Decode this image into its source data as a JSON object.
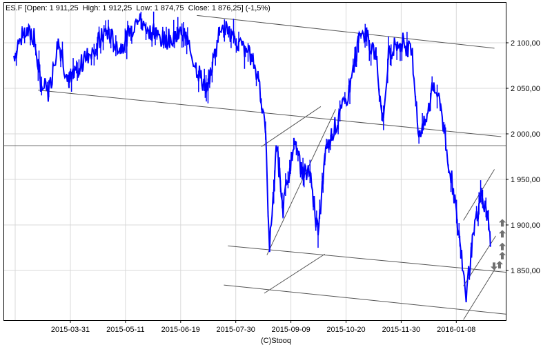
{
  "header": {
    "text": "ES.F [Open: 1 911,25  High: 1 912,25  Low: 1 874,75  Close: 1 876,25] (-1,5%)"
  },
  "footer": {
    "copyright": "(C)Stooq"
  },
  "colors": {
    "price": "#0000ff",
    "trendline": "#555555",
    "grid": "#d8d8d8",
    "signal": "#707070"
  },
  "chart_data": {
    "type": "line",
    "title": "ES.F [Open: 1 911,25  High: 1 912,25  Low: 1 874,75  Close: 1 876,25] (-1,5%)",
    "ylim": [
      1800,
      2135
    ],
    "grid": true,
    "x_ticks": [
      "2015-03-31",
      "2015-05-11",
      "2015-06-19",
      "2015-07-30",
      "2015-09-09",
      "2015-10-20",
      "2015-11-30",
      "2016-01-08"
    ],
    "y_ticks": [
      {
        "value": 2100,
        "label": "2 100,00"
      },
      {
        "value": 2050,
        "label": "2 050,00"
      },
      {
        "value": 2000,
        "label": "2 000,00"
      },
      {
        "value": 1950,
        "label": "1 950,00"
      },
      {
        "value": 1900,
        "label": "1 900,00"
      },
      {
        "value": 1850,
        "label": "1 850,00"
      }
    ],
    "series": [
      {
        "points": [
          [
            "2015-02-17",
            2086
          ],
          [
            "2015-02-25",
            2113
          ],
          [
            "2015-03-04",
            2106
          ],
          [
            "2015-03-09",
            2056
          ],
          [
            "2015-03-15",
            2045
          ],
          [
            "2015-03-22",
            2102
          ],
          [
            "2015-03-30",
            2052
          ],
          [
            "2015-04-07",
            2075
          ],
          [
            "2015-04-17",
            2094
          ],
          [
            "2015-04-27",
            2113
          ],
          [
            "2015-05-07",
            2094
          ],
          [
            "2015-05-20",
            2128
          ],
          [
            "2015-05-30",
            2113
          ],
          [
            "2015-06-09",
            2102
          ],
          [
            "2015-06-23",
            2113
          ],
          [
            "2015-07-03",
            2071
          ],
          [
            "2015-07-10",
            2048
          ],
          [
            "2015-07-21",
            2120
          ],
          [
            "2015-07-31",
            2102
          ],
          [
            "2015-08-10",
            2090
          ],
          [
            "2015-08-18",
            2063
          ],
          [
            "2015-08-23",
            1995
          ],
          [
            "2015-08-26",
            1874
          ],
          [
            "2015-08-31",
            1987
          ],
          [
            "2015-09-05",
            1919
          ],
          [
            "2015-09-13",
            1987
          ],
          [
            "2015-09-20",
            1957
          ],
          [
            "2015-09-25",
            1957
          ],
          [
            "2015-10-01",
            1889
          ],
          [
            "2015-10-06",
            1972
          ],
          [
            "2015-10-11",
            2002
          ],
          [
            "2015-10-16",
            2014
          ],
          [
            "2015-10-24",
            2048
          ],
          [
            "2015-10-31",
            2101
          ],
          [
            "2015-11-05",
            2109
          ],
          [
            "2015-11-13",
            2086
          ],
          [
            "2015-11-18",
            2018
          ],
          [
            "2015-11-23",
            2094
          ],
          [
            "2015-12-03",
            2101
          ],
          [
            "2015-12-10",
            2086
          ],
          [
            "2015-12-15",
            1995
          ],
          [
            "2015-12-21",
            2018
          ],
          [
            "2015-12-26",
            2056
          ],
          [
            "2015-12-31",
            2033
          ],
          [
            "2016-01-04",
            1987
          ],
          [
            "2016-01-10",
            1934
          ],
          [
            "2016-01-15",
            1874
          ],
          [
            "2016-01-19",
            1821
          ],
          [
            "2016-01-23",
            1874
          ],
          [
            "2016-01-30",
            1934
          ],
          [
            "2016-02-05",
            1904
          ],
          [
            "2016-02-06",
            1876
          ]
        ]
      }
    ],
    "reference_line": {
      "value": 1987
    },
    "trendlines": [
      [
        [
          "2015-07-03",
          2130
        ],
        [
          "2016-02-09",
          2094
        ]
      ],
      [
        [
          "2015-03-07",
          2048
        ],
        [
          "2016-02-14",
          1997
        ]
      ],
      [
        [
          "2015-07-26",
          1877
        ],
        [
          "2016-02-18",
          1848
        ]
      ],
      [
        [
          "2015-07-23",
          1834
        ],
        [
          "2016-02-18",
          1802
        ]
      ],
      [
        [
          "2015-08-20",
          1986
        ],
        [
          "2015-10-03",
          2030
        ]
      ],
      [
        [
          "2015-08-24",
          1867
        ],
        [
          "2015-10-14",
          2027
        ]
      ],
      [
        [
          "2015-08-22",
          1825
        ],
        [
          "2015-10-06",
          1868
        ]
      ],
      [
        [
          "2016-01-17",
          1905
        ],
        [
          "2016-02-09",
          1961
        ]
      ],
      [
        [
          "2016-01-17",
          1833
        ],
        [
          "2016-02-10",
          1888
        ]
      ],
      [
        [
          "2016-01-17",
          1796
        ],
        [
          "2016-02-10",
          1853
        ]
      ]
    ],
    "signals": [
      {
        "type": "up",
        "value": 1902
      },
      {
        "type": "up",
        "value": 1890
      },
      {
        "type": "up",
        "value": 1876
      },
      {
        "type": "up",
        "value": 1866
      },
      {
        "type": "down",
        "value": 1855
      },
      {
        "type": "up",
        "value": 1856
      }
    ]
  }
}
